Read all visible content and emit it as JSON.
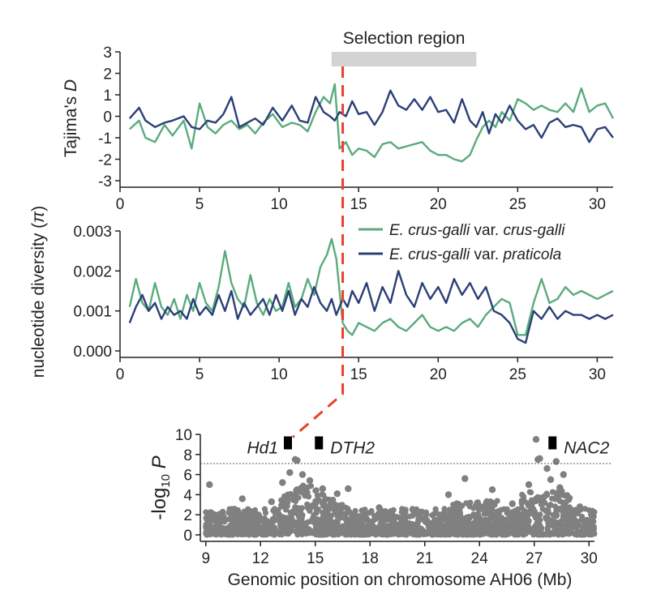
{
  "colors": {
    "crus_galli": "#5aab7c",
    "praticola": "#2b3f77",
    "selection_bar": "#d3d3d3",
    "selection_line": "#e8412c",
    "gwas_points": "#808080",
    "gene_box": "#000000",
    "hd1_label": "#e8412c"
  },
  "annotations": {
    "selection_region": "Selection region",
    "genes": [
      "Hd1",
      "DTH2",
      "NAC2"
    ]
  },
  "chart_data": [
    {
      "type": "line",
      "ylabel_main": "Tajima's ",
      "ylabel_italic": "D",
      "ylim": [
        -3,
        3
      ],
      "xlim": [
        0,
        31
      ],
      "yticks": [
        "3",
        "2",
        "1",
        "0",
        "-1",
        "-2",
        "-3"
      ],
      "xticks": [
        "0",
        "5",
        "10",
        "15",
        "20",
        "25",
        "30"
      ],
      "selection_region": [
        13.3,
        22.4
      ],
      "selection_line_x": 14.0,
      "series": [
        {
          "key": "crus_galli",
          "x": [
            0.6,
            1.2,
            1.6,
            2.2,
            2.8,
            3.3,
            4.0,
            4.5,
            5.0,
            5.5,
            6.0,
            6.5,
            7.0,
            7.5,
            8.0,
            8.5,
            9.0,
            9.6,
            10.2,
            10.8,
            11.3,
            11.8,
            12.3,
            12.8,
            13.2,
            13.5,
            13.8,
            14.2,
            14.6,
            15.0,
            15.5,
            16.0,
            16.5,
            17.0,
            17.5,
            18.0,
            18.5,
            19.0,
            19.5,
            20.0,
            20.5,
            21.0,
            21.5,
            22.0,
            22.4,
            22.8,
            23.2,
            23.6,
            24.0,
            24.5,
            25.0,
            25.5,
            26.0,
            26.5,
            27.0,
            27.5,
            28.0,
            28.5,
            29.0,
            29.5,
            30.0,
            30.5,
            31.0
          ],
          "y": [
            -0.6,
            -0.2,
            -1.0,
            -1.2,
            -0.4,
            -0.9,
            -0.2,
            -1.5,
            0.6,
            -0.5,
            -0.8,
            -0.4,
            -0.2,
            -0.6,
            -0.4,
            -0.8,
            -0.3,
            0.1,
            -0.5,
            -0.3,
            -0.4,
            -0.7,
            0.2,
            0.9,
            0.6,
            1.5,
            -1.5,
            -1.2,
            -1.8,
            -1.5,
            -1.6,
            -1.9,
            -1.3,
            -1.2,
            -1.5,
            -1.4,
            -1.3,
            -1.2,
            -1.6,
            -1.8,
            -1.8,
            -2.0,
            -2.1,
            -1.8,
            -1.1,
            -0.5,
            -0.2,
            -0.5,
            0.2,
            -0.2,
            0.8,
            0.6,
            0.3,
            0.5,
            0.3,
            0.2,
            0.6,
            0.2,
            1.3,
            0.2,
            0.5,
            0.6,
            -0.1
          ]
        },
        {
          "key": "praticola",
          "x": [
            0.6,
            1.2,
            1.6,
            2.2,
            2.8,
            3.3,
            4.0,
            4.5,
            5.0,
            5.5,
            6.0,
            6.5,
            7.0,
            7.5,
            8.0,
            8.5,
            9.0,
            9.6,
            10.2,
            10.8,
            11.3,
            11.8,
            12.3,
            12.8,
            13.2,
            13.5,
            13.8,
            14.2,
            14.6,
            15.0,
            15.5,
            16.0,
            16.5,
            17.0,
            17.5,
            18.0,
            18.5,
            19.0,
            19.5,
            20.0,
            20.5,
            21.0,
            21.5,
            22.0,
            22.4,
            22.8,
            23.2,
            23.6,
            24.0,
            24.5,
            25.0,
            25.5,
            26.0,
            26.5,
            27.0,
            27.5,
            28.0,
            28.5,
            29.0,
            29.5,
            30.0,
            30.5,
            31.0
          ],
          "y": [
            -0.1,
            0.4,
            -0.2,
            -0.5,
            -0.3,
            -0.2,
            0.0,
            -0.5,
            -0.6,
            -0.2,
            -0.3,
            0.1,
            0.9,
            -0.5,
            -0.3,
            -0.1,
            -0.4,
            0.4,
            -0.2,
            0.5,
            -0.2,
            -0.3,
            0.9,
            0.2,
            0.0,
            -0.2,
            0.2,
            0.0,
            0.7,
            0.1,
            0.2,
            -0.4,
            0.2,
            1.2,
            0.5,
            0.3,
            0.8,
            0.3,
            0.9,
            0.2,
            0.3,
            -0.3,
            0.8,
            -0.2,
            -0.5,
            0.2,
            -0.8,
            0.1,
            -0.3,
            0.5,
            -0.2,
            -0.6,
            -0.4,
            -1.0,
            -0.3,
            -0.1,
            -0.5,
            -0.4,
            -0.5,
            -1.2,
            -0.6,
            -0.5,
            -1.0
          ]
        }
      ]
    },
    {
      "type": "line",
      "ylabel_main": "nucleotide diversity (",
      "ylabel_italic": "π",
      "ylabel_tail": ")",
      "ylim": [
        0.0,
        0.003
      ],
      "xlim": [
        0,
        31
      ],
      "yticks": [
        "0.003",
        "0.002",
        "0.001",
        "0.000"
      ],
      "xticks": [
        "0",
        "5",
        "10",
        "15",
        "20",
        "25",
        "30"
      ],
      "legend_position": "top-right",
      "series": [
        {
          "key": "crus_galli",
          "name_italic": "E. crus-galli",
          "name_mid": " var. ",
          "name_end": "crus-galli",
          "x": [
            0.6,
            1.0,
            1.4,
            1.8,
            2.2,
            2.6,
            3.0,
            3.4,
            3.8,
            4.2,
            4.6,
            5.0,
            5.4,
            5.8,
            6.2,
            6.6,
            7.0,
            7.4,
            7.8,
            8.2,
            8.6,
            9.0,
            9.4,
            9.8,
            10.2,
            10.6,
            11.0,
            11.4,
            11.8,
            12.2,
            12.6,
            13.0,
            13.3,
            13.6,
            14.0,
            14.3,
            14.6,
            15.0,
            15.5,
            16.0,
            16.5,
            17.0,
            17.5,
            18.0,
            18.5,
            19.0,
            19.5,
            20.0,
            20.5,
            21.0,
            21.5,
            22.0,
            22.5,
            23.0,
            23.5,
            24.0,
            24.5,
            25.0,
            25.5,
            26.0,
            26.5,
            27.0,
            27.5,
            28.0,
            28.5,
            29.0,
            29.5,
            30.0,
            30.5,
            31.0
          ],
          "y": [
            0.0011,
            0.0018,
            0.0012,
            0.001,
            0.0017,
            0.0011,
            0.0009,
            0.0013,
            0.0008,
            0.0014,
            0.001,
            0.0017,
            0.0012,
            0.001,
            0.0016,
            0.0025,
            0.0017,
            0.0013,
            0.0011,
            0.0019,
            0.0012,
            0.0009,
            0.0013,
            0.001,
            0.0011,
            0.0017,
            0.0011,
            0.0013,
            0.0018,
            0.0014,
            0.0021,
            0.0024,
            0.0028,
            0.0023,
            0.0007,
            0.0005,
            0.0004,
            0.0007,
            0.0006,
            0.0005,
            0.0007,
            0.0008,
            0.0006,
            0.0005,
            0.0007,
            0.0009,
            0.0006,
            0.0005,
            0.0006,
            0.0005,
            0.0007,
            0.0008,
            0.0006,
            0.0009,
            0.0011,
            0.0013,
            0.0012,
            0.0004,
            0.0004,
            0.0012,
            0.0018,
            0.0012,
            0.0013,
            0.0016,
            0.0014,
            0.0015,
            0.0014,
            0.0013,
            0.0014,
            0.0015
          ]
        },
        {
          "key": "praticola",
          "name_italic": "E. crus-galli",
          "name_mid": " var. ",
          "name_end": "praticola",
          "x": [
            0.6,
            1.0,
            1.4,
            1.8,
            2.2,
            2.6,
            3.0,
            3.4,
            3.8,
            4.2,
            4.6,
            5.0,
            5.4,
            5.8,
            6.2,
            6.6,
            7.0,
            7.4,
            7.8,
            8.2,
            8.6,
            9.0,
            9.4,
            9.8,
            10.2,
            10.6,
            11.0,
            11.4,
            11.8,
            12.2,
            12.6,
            13.0,
            13.3,
            13.6,
            14.0,
            14.3,
            14.6,
            15.0,
            15.5,
            16.0,
            16.5,
            17.0,
            17.5,
            18.0,
            18.5,
            19.0,
            19.5,
            20.0,
            20.5,
            21.0,
            21.5,
            22.0,
            22.5,
            23.0,
            23.5,
            24.0,
            24.5,
            25.0,
            25.5,
            26.0,
            26.5,
            27.0,
            27.5,
            28.0,
            28.5,
            29.0,
            29.5,
            30.0,
            30.5,
            31.0
          ],
          "y": [
            0.0007,
            0.0011,
            0.0014,
            0.001,
            0.0012,
            0.0008,
            0.0011,
            0.0009,
            0.001,
            0.0008,
            0.0013,
            0.0009,
            0.0011,
            0.0009,
            0.0014,
            0.001,
            0.0015,
            0.0008,
            0.0012,
            0.0009,
            0.0011,
            0.0013,
            0.0009,
            0.0014,
            0.001,
            0.0015,
            0.0009,
            0.0013,
            0.0011,
            0.0016,
            0.0012,
            0.001,
            0.0013,
            0.0009,
            0.0013,
            0.0011,
            0.0015,
            0.0012,
            0.0017,
            0.001,
            0.0016,
            0.0012,
            0.002,
            0.0014,
            0.0011,
            0.0017,
            0.0013,
            0.0016,
            0.0012,
            0.0018,
            0.0014,
            0.0017,
            0.0013,
            0.0016,
            0.001,
            0.0009,
            0.0007,
            0.0003,
            0.0002,
            0.001,
            0.0008,
            0.0011,
            0.0008,
            0.001,
            0.0009,
            0.0009,
            0.0008,
            0.0009,
            0.0008,
            0.0009
          ]
        }
      ]
    },
    {
      "type": "scatter",
      "ylabel_main": "-log",
      "ylabel_sub": "10",
      "ylabel_italic": "P",
      "xlabel": "Genomic position on chromosome AH06 (Mb)",
      "xlim": [
        8.7,
        30.3
      ],
      "ylim": [
        0,
        10
      ],
      "xticks": [
        "9",
        "12",
        "15",
        "18",
        "21",
        "24",
        "27",
        "30"
      ],
      "yticks": [
        "10",
        "8",
        "6",
        "4",
        "2",
        "0"
      ],
      "threshold": 7.1,
      "genes": [
        {
          "name": "Hd1",
          "pos": 13.5
        },
        {
          "name": "DTH2",
          "pos": 15.2
        },
        {
          "name": "NAC2",
          "pos": 28.0
        }
      ],
      "peaks": [
        {
          "x": 13.9,
          "y": 7.5
        },
        {
          "x": 14.0,
          "y": 7.4
        },
        {
          "x": 13.6,
          "y": 6.2
        },
        {
          "x": 14.3,
          "y": 6.0
        },
        {
          "x": 14.7,
          "y": 5.4
        },
        {
          "x": 15.4,
          "y": 4.6
        },
        {
          "x": 16.2,
          "y": 4.1
        },
        {
          "x": 16.8,
          "y": 4.6
        },
        {
          "x": 13.2,
          "y": 5.2
        },
        {
          "x": 12.6,
          "y": 3.3
        },
        {
          "x": 9.2,
          "y": 5.0
        },
        {
          "x": 11.0,
          "y": 3.6
        },
        {
          "x": 18.5,
          "y": 2.7
        },
        {
          "x": 20.5,
          "y": 2.4
        },
        {
          "x": 22.3,
          "y": 4.0
        },
        {
          "x": 23.2,
          "y": 5.6
        },
        {
          "x": 23.9,
          "y": 3.2
        },
        {
          "x": 24.7,
          "y": 4.5
        },
        {
          "x": 25.8,
          "y": 3.1
        },
        {
          "x": 26.7,
          "y": 5.0
        },
        {
          "x": 27.1,
          "y": 9.5
        },
        {
          "x": 27.2,
          "y": 7.5
        },
        {
          "x": 27.3,
          "y": 7.6
        },
        {
          "x": 27.7,
          "y": 6.6
        },
        {
          "x": 28.2,
          "y": 7.3
        },
        {
          "x": 28.4,
          "y": 4.7
        },
        {
          "x": 28.6,
          "y": 6.0
        },
        {
          "x": 28.3,
          "y": 4.2
        },
        {
          "x": 29.5,
          "y": 2.8
        },
        {
          "x": 27.9,
          "y": 5.5
        }
      ]
    }
  ]
}
